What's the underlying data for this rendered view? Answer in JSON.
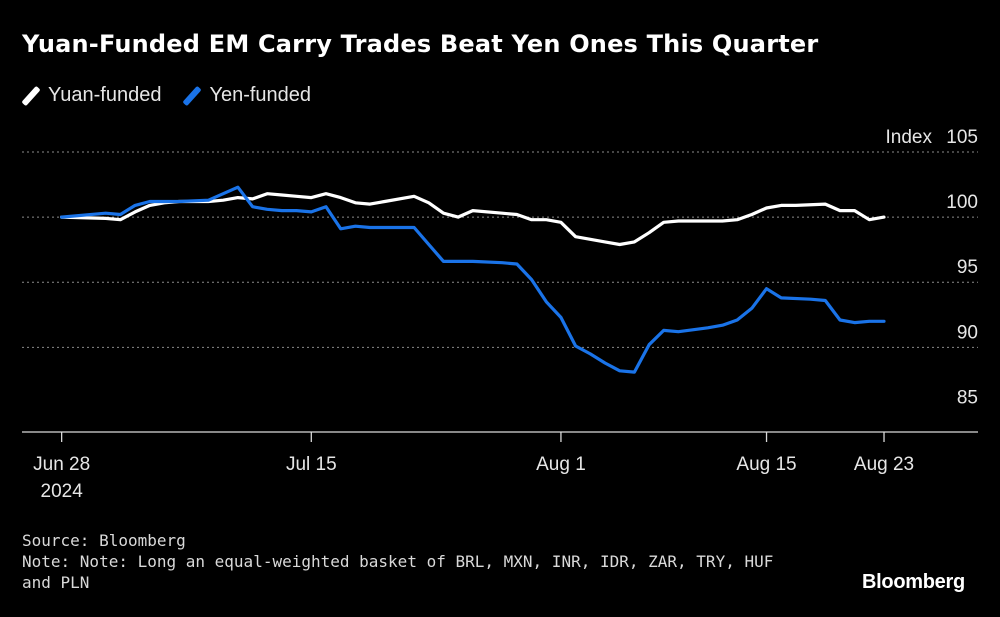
{
  "header": {
    "title": "Yuan-Funded EM Carry Trades Beat Yen Ones This Quarter"
  },
  "legend": [
    {
      "label": "Yuan-funded",
      "color": "#ffffff"
    },
    {
      "label": "Yen-funded",
      "color": "#1a73e8"
    }
  ],
  "footer": {
    "source": "Source: Bloomberg",
    "note_line1": "Note: Note: Long an equal-weighted basket of BRL, MXN, INR, IDR, ZAR, TRY, HUF",
    "note_line2": "and PLN",
    "brand": "Bloomberg"
  },
  "chart_data": {
    "type": "line",
    "y_unit_label": "Index",
    "ylim": [
      83.5,
      105
    ],
    "yticks": [
      105,
      100,
      95,
      90,
      85
    ],
    "xlim": [
      -2.7,
      62.4
    ],
    "grid": true,
    "x_tick_labels": [
      {
        "x": 0,
        "label": "Jun 28",
        "sub": "2024"
      },
      {
        "x": 17,
        "label": "Jul 15",
        "sub": ""
      },
      {
        "x": 34,
        "label": "Aug 1",
        "sub": ""
      },
      {
        "x": 48,
        "label": "Aug 15",
        "sub": ""
      },
      {
        "x": 56,
        "label": "Aug 23",
        "sub": ""
      }
    ],
    "series": [
      {
        "name": "Yuan-funded",
        "color": "#ffffff",
        "x": [
          0,
          3,
          4,
          5,
          6,
          7,
          8,
          10,
          11,
          12,
          13,
          14,
          15,
          16,
          17,
          18,
          19,
          20,
          21,
          22,
          24,
          25,
          26,
          27,
          28,
          30,
          31,
          32,
          33,
          34,
          35,
          37,
          38,
          39,
          40,
          41,
          42,
          44,
          45,
          46,
          47,
          48,
          49,
          50,
          52,
          53,
          54,
          55,
          56
        ],
        "y": [
          100.0,
          99.9,
          99.8,
          100.4,
          100.9,
          101.1,
          101.2,
          101.2,
          101.3,
          101.5,
          101.4,
          101.8,
          101.7,
          101.6,
          101.5,
          101.8,
          101.5,
          101.1,
          101.0,
          101.2,
          101.6,
          101.1,
          100.3,
          100.0,
          100.5,
          100.3,
          100.2,
          99.8,
          99.8,
          99.6,
          98.5,
          98.1,
          97.9,
          98.1,
          98.8,
          99.6,
          99.7,
          99.7,
          99.7,
          99.8,
          100.2,
          100.7,
          100.9,
          100.9,
          101.0,
          100.5,
          100.5,
          99.8,
          100.0
        ]
      },
      {
        "name": "Yen-funded",
        "color": "#1a73e8",
        "x": [
          0,
          3,
          4,
          5,
          6,
          7,
          8,
          10,
          11,
          12,
          13,
          14,
          15,
          16,
          17,
          18,
          19,
          20,
          21,
          22,
          24,
          25,
          26,
          27,
          28,
          30,
          31,
          32,
          33,
          34,
          35,
          36,
          37,
          38,
          39,
          40,
          41,
          42,
          44,
          45,
          46,
          47,
          48,
          49,
          51,
          52,
          53,
          54,
          55,
          56
        ],
        "y": [
          100.0,
          100.3,
          100.2,
          100.9,
          101.2,
          101.2,
          101.2,
          101.3,
          101.8,
          102.3,
          100.8,
          100.6,
          100.5,
          100.5,
          100.4,
          100.8,
          99.1,
          99.3,
          99.2,
          99.2,
          99.2,
          97.9,
          96.6,
          96.6,
          96.6,
          96.5,
          96.4,
          95.2,
          93.5,
          92.3,
          90.1,
          89.5,
          88.8,
          88.2,
          88.1,
          90.2,
          91.3,
          91.2,
          91.5,
          91.7,
          92.1,
          93.0,
          94.5,
          93.8,
          93.7,
          93.6,
          92.1,
          91.9,
          92.0,
          92.0
        ]
      }
    ]
  }
}
